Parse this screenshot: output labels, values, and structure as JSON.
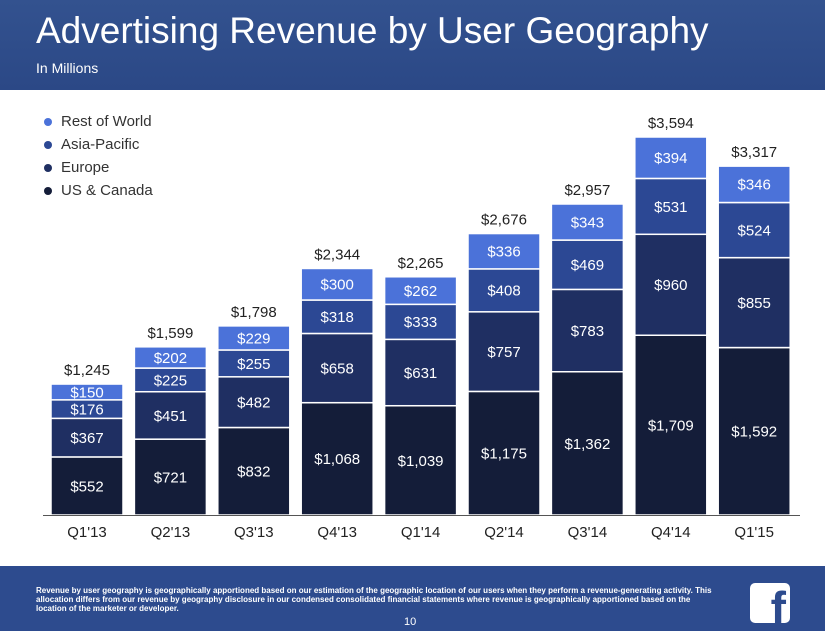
{
  "header": {
    "title": "Advertising Revenue by User Geography",
    "subtitle": "In Millions"
  },
  "colors": {
    "header_bg": "#2d4b8e",
    "us_canada": "#141d39",
    "europe": "#1f2f62",
    "asia_pacific": "#2c4894",
    "rest_of_world": "#4b72d9"
  },
  "chart_data": {
    "type": "bar",
    "stacked": true,
    "categories": [
      "Q1'13",
      "Q2'13",
      "Q3'13",
      "Q4'13",
      "Q1'14",
      "Q2'14",
      "Q3'14",
      "Q4'14",
      "Q1'15"
    ],
    "series": [
      {
        "name": "US & Canada",
        "color": "#141d39",
        "values": [
          552,
          721,
          832,
          1068,
          1039,
          1175,
          1362,
          1709,
          1592
        ]
      },
      {
        "name": "Europe",
        "color": "#1f2f62",
        "values": [
          367,
          451,
          482,
          658,
          631,
          757,
          783,
          960,
          855
        ]
      },
      {
        "name": "Asia-Pacific",
        "color": "#2c4894",
        "values": [
          176,
          225,
          255,
          318,
          333,
          408,
          469,
          531,
          524
        ]
      },
      {
        "name": "Rest of World",
        "color": "#4b72d9",
        "values": [
          150,
          202,
          229,
          300,
          262,
          336,
          343,
          394,
          346
        ]
      }
    ],
    "totals": [
      "$1,245",
      "$1,599",
      "$1,798",
      "$2,344",
      "$2,265",
      "$2,676",
      "$2,957",
      "$3,594",
      "$3,317"
    ],
    "value_labels": [
      [
        "$552",
        "$721",
        "$832",
        "$1,068",
        "$1,039",
        "$1,175",
        "$1,362",
        "$1,709",
        "$1,592"
      ],
      [
        "$367",
        "$451",
        "$482",
        "$658",
        "$631",
        "$757",
        "$783",
        "$960",
        "$855"
      ],
      [
        "$176",
        "$225",
        "$255",
        "$318",
        "$333",
        "$408",
        "$469",
        "$531",
        "$524"
      ],
      [
        "$150",
        "$202",
        "$229",
        "$300",
        "$262",
        "$336",
        "$343",
        "$394",
        "$346"
      ]
    ],
    "ylim": [
      0,
      3594
    ],
    "grid": false,
    "legend_position": "top-left",
    "legend_order": [
      "Rest of World",
      "Asia-Pacific",
      "Europe",
      "US & Canada"
    ]
  },
  "footer": {
    "footnote": "Revenue by user geography is geographically apportioned based on our estimation of the geographic location of our users when they perform a revenue-generating activity. This allocation differs from our revenue by geography disclosure in our condensed consolidated financial statements where revenue is geographically apportioned based on the location of the marketer or developer.",
    "page_number": "10",
    "logo_icon": "facebook-f-icon"
  }
}
